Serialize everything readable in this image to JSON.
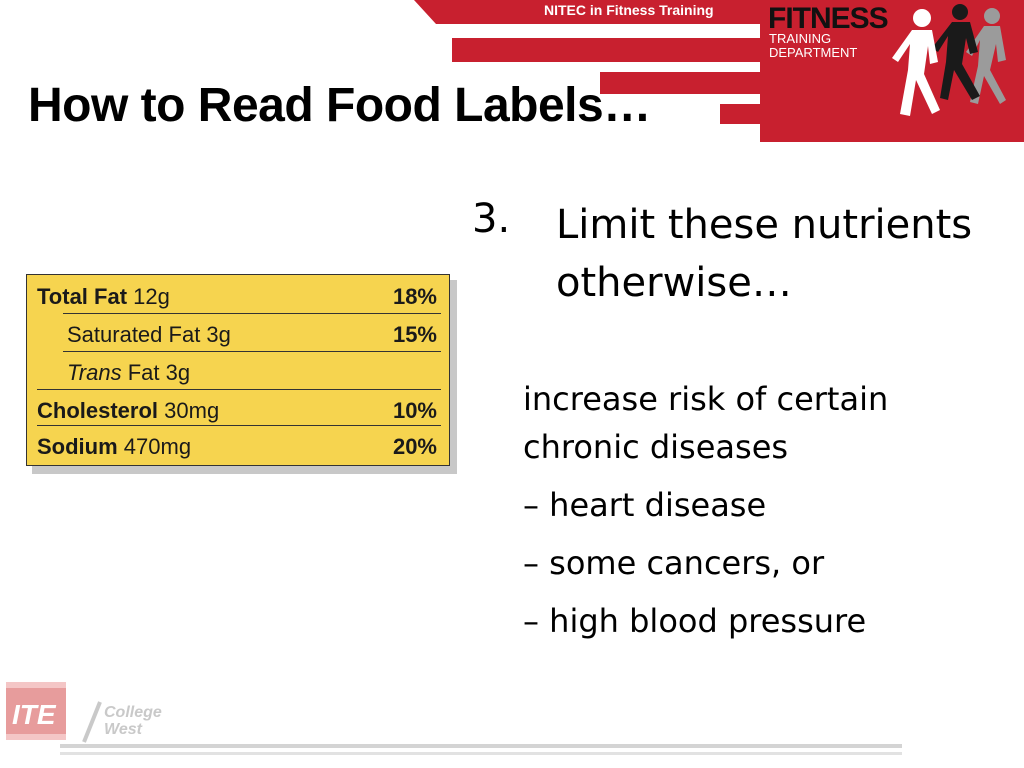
{
  "banner": {
    "tab_text": "NITEC in Fitness  Training",
    "fitness_word": "FITNESS",
    "fitness_sub_line1": "TRAINING",
    "fitness_sub_line2": "DEPARTMENT",
    "accent_color": "#c8202f"
  },
  "slide": {
    "title": "How to Read Food Labels…"
  },
  "nutrition_label": {
    "background_color": "#f6d44f",
    "rows": [
      {
        "name_bold": "Total Fat",
        "amount": "12g",
        "percent": "18%"
      },
      {
        "name": "Saturated Fat 3g",
        "percent": "15%"
      },
      {
        "name_italic": "Trans",
        "name_rest": "Fat 3g",
        "percent": ""
      },
      {
        "name_bold": "Cholesterol",
        "amount": "30mg",
        "percent": "10%"
      },
      {
        "name_bold": "Sodium",
        "amount": "470mg",
        "percent": "20%"
      }
    ]
  },
  "content": {
    "number": "3.",
    "point_line1": "Limit these nutrients",
    "point_line2": "otherwise…",
    "sub_line1": "increase risk of certain",
    "sub_line2": "chronic diseases",
    "bullets": [
      "– heart disease",
      "– some cancers, or",
      "– high blood pressure"
    ]
  },
  "footer": {
    "logo_icon": "ite-logo-icon",
    "logo_text": "ITE",
    "college_line1": "College",
    "college_line2": "West"
  }
}
